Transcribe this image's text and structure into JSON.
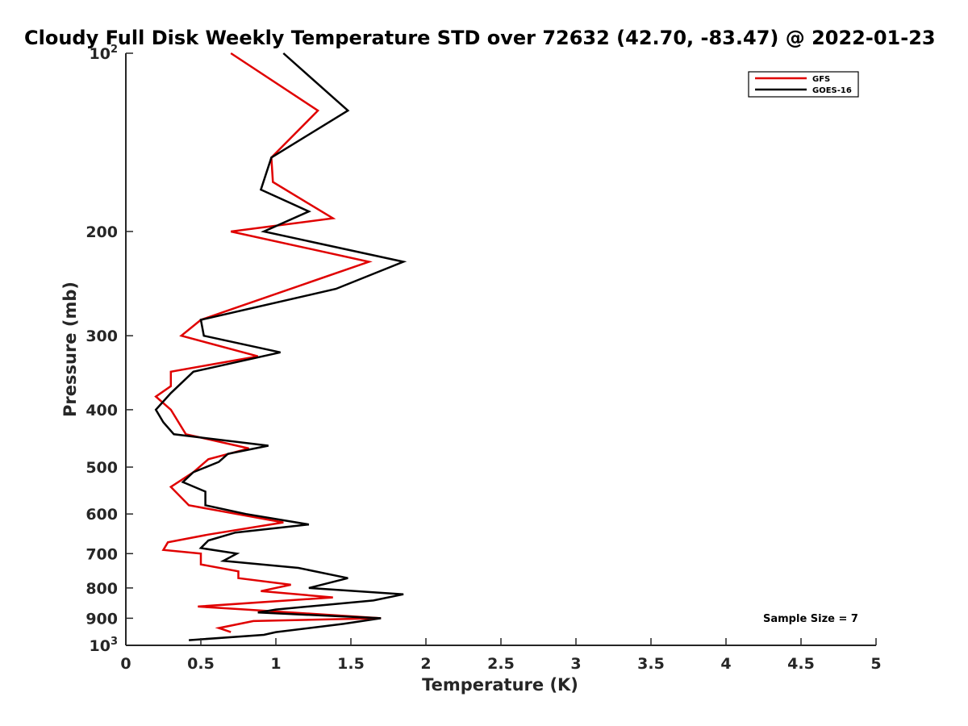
{
  "chart_data": {
    "type": "line",
    "title": "Cloudy Full Disk Weekly Temperature STD over 72632 (42.70, -83.47) @ 2022-01-23",
    "xlabel": "Temperature (K)",
    "ylabel": "Pressure (mb)",
    "xlim": [
      0,
      5
    ],
    "ylim": [
      100,
      1000
    ],
    "yscale": "log",
    "y_reversed": true,
    "grid": false,
    "legend_position": "top-right",
    "x_ticks": [
      "0",
      "0.5",
      "1",
      "1.5",
      "2",
      "2.5",
      "3",
      "3.5",
      "4",
      "4.5",
      "5"
    ],
    "y_ticks": [
      {
        "value": 100,
        "base": "10",
        "exp": "2"
      },
      {
        "value": 200,
        "label": "200"
      },
      {
        "value": 300,
        "label": "300"
      },
      {
        "value": 400,
        "label": "400"
      },
      {
        "value": 500,
        "label": "500"
      },
      {
        "value": 600,
        "label": "600"
      },
      {
        "value": 700,
        "label": "700"
      },
      {
        "value": 800,
        "label": "800"
      },
      {
        "value": 900,
        "label": "900"
      },
      {
        "value": 1000,
        "base": "10",
        "exp": "3"
      }
    ],
    "annotation": "Sample Size = 7",
    "series": [
      {
        "name": "GFS",
        "color": "#e00000",
        "points": [
          [
            0.7,
            100
          ],
          [
            1.28,
            125
          ],
          [
            0.97,
            150
          ],
          [
            0.98,
            165
          ],
          [
            1.38,
            190
          ],
          [
            0.7,
            200
          ],
          [
            1.62,
            225
          ],
          [
            0.5,
            282
          ],
          [
            0.37,
            300
          ],
          [
            0.88,
            325
          ],
          [
            0.3,
            345
          ],
          [
            0.3,
            365
          ],
          [
            0.2,
            380
          ],
          [
            0.3,
            400
          ],
          [
            0.4,
            440
          ],
          [
            0.82,
            465
          ],
          [
            0.55,
            485
          ],
          [
            0.45,
            510
          ],
          [
            0.3,
            540
          ],
          [
            0.42,
            580
          ],
          [
            1.05,
            620
          ],
          [
            0.55,
            650
          ],
          [
            0.28,
            670
          ],
          [
            0.25,
            690
          ],
          [
            0.5,
            700
          ],
          [
            0.5,
            730
          ],
          [
            0.75,
            750
          ],
          [
            0.75,
            770
          ],
          [
            1.1,
            790
          ],
          [
            0.9,
            810
          ],
          [
            1.38,
            830
          ],
          [
            0.48,
            860
          ],
          [
            0.8,
            870
          ],
          [
            1.7,
            900
          ],
          [
            0.85,
            910
          ],
          [
            0.62,
            935
          ],
          [
            0.7,
            950
          ]
        ]
      },
      {
        "name": "GOES-16",
        "color": "#000000",
        "points": [
          [
            1.05,
            100
          ],
          [
            1.48,
            125
          ],
          [
            0.97,
            150
          ],
          [
            0.9,
            170
          ],
          [
            1.22,
            185
          ],
          [
            0.92,
            200
          ],
          [
            1.85,
            225
          ],
          [
            1.4,
            250
          ],
          [
            0.5,
            282
          ],
          [
            0.52,
            300
          ],
          [
            1.03,
            320
          ],
          [
            0.45,
            345
          ],
          [
            0.3,
            375
          ],
          [
            0.2,
            400
          ],
          [
            0.25,
            420
          ],
          [
            0.32,
            440
          ],
          [
            0.95,
            460
          ],
          [
            0.68,
            475
          ],
          [
            0.62,
            490
          ],
          [
            0.45,
            510
          ],
          [
            0.38,
            530
          ],
          [
            0.53,
            550
          ],
          [
            0.53,
            580
          ],
          [
            0.8,
            600
          ],
          [
            1.22,
            625
          ],
          [
            0.73,
            645
          ],
          [
            0.55,
            665
          ],
          [
            0.5,
            685
          ],
          [
            0.74,
            700
          ],
          [
            0.65,
            720
          ],
          [
            1.15,
            740
          ],
          [
            1.48,
            770
          ],
          [
            1.22,
            800
          ],
          [
            1.85,
            820
          ],
          [
            1.65,
            840
          ],
          [
            1.0,
            870
          ],
          [
            0.88,
            880
          ],
          [
            1.7,
            900
          ],
          [
            1.45,
            920
          ],
          [
            1.0,
            950
          ],
          [
            0.92,
            960
          ],
          [
            0.42,
            980
          ]
        ]
      }
    ]
  }
}
